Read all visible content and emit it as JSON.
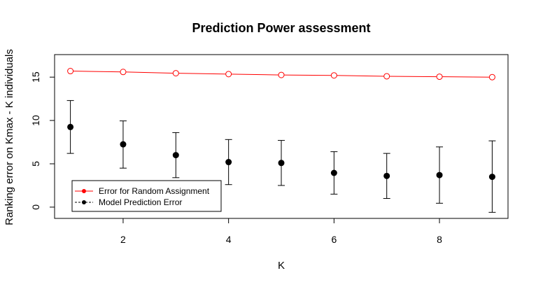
{
  "chart_data": {
    "type": "line",
    "title": "Prediction Power assessment",
    "xlabel": "K",
    "ylabel": "Ranking error on Kmax - K individuals",
    "xlim": [
      0.7,
      9.3
    ],
    "ylim": [
      -1.3,
      17.6
    ],
    "x_ticks": [
      2,
      4,
      6,
      8
    ],
    "y_ticks": [
      0,
      5,
      10,
      15
    ],
    "grid": false,
    "legend_position": "bottom-left",
    "series": [
      {
        "name": "Error for Random Assignment",
        "color": "#ff0000",
        "marker": "open-circle",
        "x": [
          1,
          2,
          3,
          4,
          5,
          6,
          7,
          8,
          9
        ],
        "y": [
          15.7,
          15.6,
          15.45,
          15.35,
          15.25,
          15.2,
          15.1,
          15.05,
          15.0
        ]
      },
      {
        "name": "Model Prediction Error",
        "color": "#000000",
        "marker": "filled-circle",
        "x": [
          1,
          2,
          3,
          4,
          5,
          6,
          7,
          8,
          9
        ],
        "y": [
          9.25,
          7.25,
          6.0,
          5.2,
          5.1,
          3.95,
          3.6,
          3.7,
          3.5
        ],
        "error_low": [
          6.2,
          4.5,
          3.4,
          2.6,
          2.5,
          1.5,
          1.0,
          0.45,
          -0.6
        ],
        "error_high": [
          12.3,
          9.95,
          8.6,
          7.8,
          7.7,
          6.4,
          6.2,
          6.95,
          7.65
        ]
      }
    ]
  }
}
